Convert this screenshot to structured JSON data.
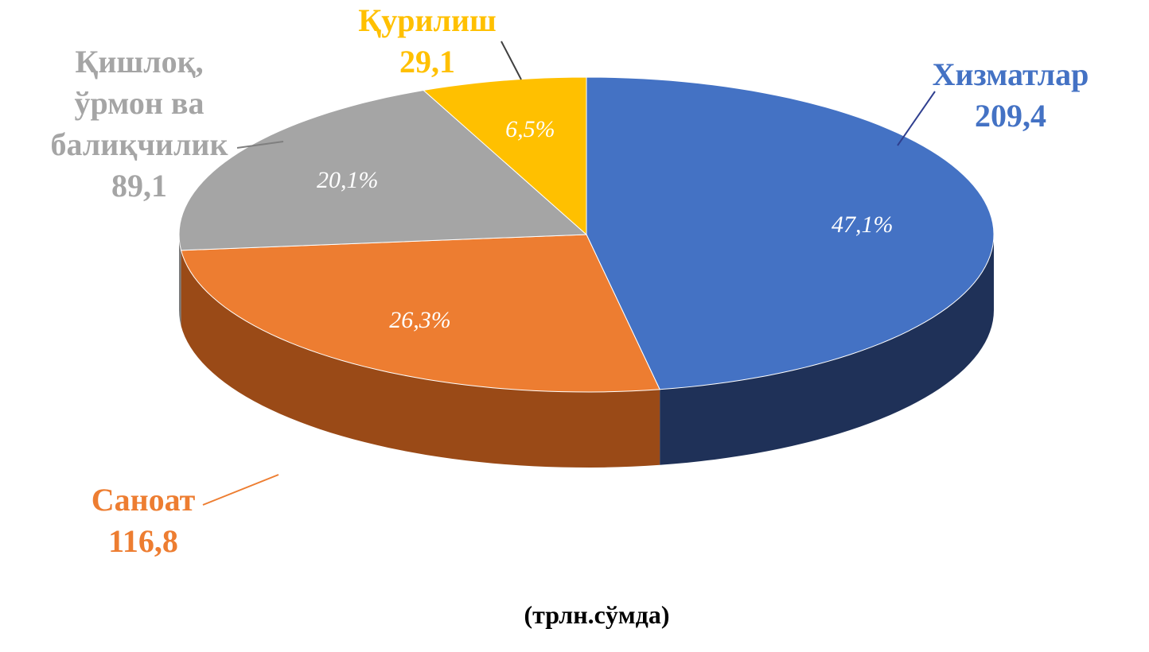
{
  "chart_data": {
    "type": "pie3d",
    "categories": [
      "Хизматлар",
      "Саноат",
      "Қишлоқ,\nўрмон ва\nбалиқчилик",
      "Қурилиш"
    ],
    "values": [
      209.4,
      116.8,
      89.1,
      29.1
    ],
    "value_labels": [
      "209,4",
      "116,8",
      "89,1",
      "29,1"
    ],
    "percents": [
      47.1,
      26.3,
      20.1,
      6.5
    ],
    "percent_labels": [
      "47,1%",
      "26,3%",
      "20,1%",
      "6,5%"
    ],
    "colors": [
      "#4472c4",
      "#ed7d31",
      "#a5a5a5",
      "#ffc000"
    ],
    "side_colors": [
      "#1f3158",
      "#9a4a17",
      "#7a7a7a",
      "#b98c00"
    ],
    "subtitle": "(трлн.сўмда)"
  }
}
